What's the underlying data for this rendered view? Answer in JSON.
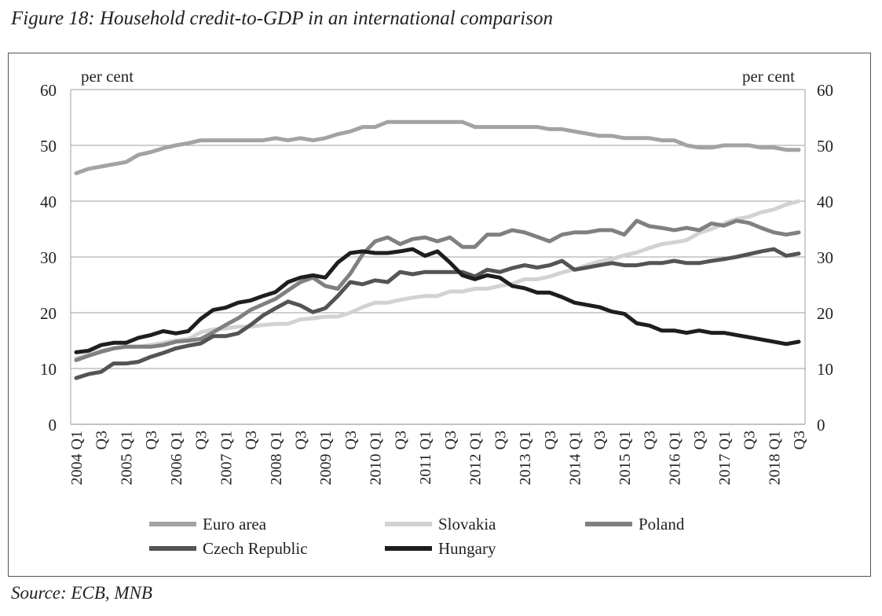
{
  "title": "Figure 18: Household credit-to-GDP in an international comparison",
  "source": "Source: ECB, MNB",
  "chart_data": {
    "type": "line",
    "title": "Figure 18: Household credit-to-GDP in an international comparison",
    "ylabel_left": "per cent",
    "ylabel_right": "per cent",
    "ylim": [
      0,
      60
    ],
    "yticks": [
      0,
      10,
      20,
      30,
      40,
      50,
      60
    ],
    "grid": true,
    "legend": "bottom",
    "x_start": "2004 Q1",
    "x_end": "2018 Q3",
    "frequency": "quarterly",
    "xtick_labels": [
      "2004 Q1",
      "Q3",
      "2005 Q1",
      "Q3",
      "2006 Q1",
      "Q3",
      "2007 Q1",
      "Q3",
      "2008 Q1",
      "Q3",
      "2009 Q1",
      "Q3",
      "2010 Q1",
      "Q3",
      "2011 Q1",
      "Q3",
      "2012 Q1",
      "Q3",
      "2013 Q1",
      "Q3",
      "2014 Q1",
      "Q3",
      "2015 Q1",
      "Q3",
      "2016 Q1",
      "Q3",
      "2017 Q1",
      "Q3",
      "2018 Q1",
      "Q3"
    ],
    "series": [
      {
        "name": "Euro area",
        "color": "#a3a3a3",
        "values": [
          45,
          45.8,
          46.2,
          46.6,
          47,
          48.3,
          48.8,
          49.5,
          50,
          50.4,
          50.9,
          50.9,
          50.9,
          50.9,
          50.9,
          50.9,
          51.3,
          50.9,
          51.3,
          50.9,
          51.3,
          52,
          52.5,
          53.3,
          53.3,
          54.2,
          54.2,
          54.2,
          54.2,
          54.2,
          54.2,
          54.2,
          53.3,
          53.3,
          53.3,
          53.3,
          53.3,
          53.3,
          52.9,
          52.9,
          52.5,
          52.1,
          51.7,
          51.7,
          51.3,
          51.3,
          51.3,
          50.9,
          50.9,
          50,
          49.6,
          49.6,
          50,
          50,
          50,
          49.6,
          49.6,
          49.2,
          49.2
        ]
      },
      {
        "name": "Slovakia",
        "color": "#d2d2d2",
        "values": [
          11.8,
          12.5,
          13.2,
          13.6,
          13.9,
          13.9,
          14.2,
          14.6,
          15,
          15.3,
          16.5,
          17,
          17.2,
          17.5,
          17.5,
          17.8,
          18,
          18,
          18.8,
          19,
          19.3,
          19.3,
          20,
          21,
          21.8,
          21.8,
          22.3,
          22.7,
          23,
          23,
          23.8,
          23.8,
          24.3,
          24.3,
          24.8,
          25.2,
          26,
          26,
          26.5,
          27.2,
          27.8,
          28.5,
          29.2,
          29.6,
          30.3,
          30.8,
          31.6,
          32.3,
          32.6,
          33,
          34.3,
          35,
          36,
          36.8,
          37.2,
          38,
          38.5,
          39.4,
          40
        ]
      },
      {
        "name": "Poland",
        "color": "#808080",
        "values": [
          11.5,
          12.3,
          13,
          13.6,
          13.9,
          13.9,
          13.9,
          14.2,
          14.8,
          15,
          15.3,
          16.5,
          17.8,
          19,
          20.5,
          21.5,
          22.5,
          24,
          25.5,
          26.3,
          24.8,
          24.3,
          27,
          30.5,
          32.8,
          33.5,
          32.3,
          33.2,
          33.5,
          32.8,
          33.5,
          31.8,
          31.8,
          34,
          34,
          34.8,
          34.4,
          33.6,
          32.8,
          34,
          34.4,
          34.4,
          34.8,
          34.8,
          34,
          36.5,
          35.5,
          35.2,
          34.8,
          35.2,
          34.8,
          36,
          35.6,
          36.5,
          36.1,
          35.2,
          34.4,
          34,
          34.4
        ]
      },
      {
        "name": "Czech Republic",
        "color": "#545454",
        "values": [
          8.3,
          9,
          9.4,
          10.9,
          10.9,
          11.2,
          12.1,
          12.8,
          13.6,
          14.1,
          14.5,
          15.8,
          15.8,
          16.3,
          17.8,
          19.5,
          20.8,
          22,
          21.3,
          20.1,
          20.8,
          23,
          25.5,
          25.1,
          25.8,
          25.5,
          27.3,
          26.9,
          27.3,
          27.3,
          27.3,
          27.3,
          26.5,
          27.7,
          27.3,
          28,
          28.5,
          28.1,
          28.5,
          29.3,
          27.7,
          28.1,
          28.5,
          28.9,
          28.5,
          28.5,
          28.9,
          28.9,
          29.3,
          28.9,
          28.9,
          29.3,
          29.6,
          30,
          30.5,
          31,
          31.4,
          30.2,
          30.6
        ]
      },
      {
        "name": "Hungary",
        "color": "#1e1e1e",
        "values": [
          12.9,
          13.2,
          14.2,
          14.6,
          14.6,
          15.5,
          16,
          16.7,
          16.3,
          16.7,
          18.9,
          20.5,
          20.9,
          21.8,
          22.2,
          23,
          23.7,
          25.5,
          26.3,
          26.7,
          26.3,
          29,
          30.7,
          31,
          30.7,
          30.7,
          31,
          31.4,
          30.2,
          31,
          29,
          26.7,
          26,
          26.7,
          26.3,
          24.8,
          24.4,
          23.6,
          23.6,
          22.8,
          21.8,
          21.4,
          21,
          20.2,
          19.8,
          18.1,
          17.7,
          16.8,
          16.8,
          16.4,
          16.8,
          16.4,
          16.4,
          16,
          15.6,
          15.2,
          14.8,
          14.4,
          14.8
        ]
      }
    ]
  }
}
